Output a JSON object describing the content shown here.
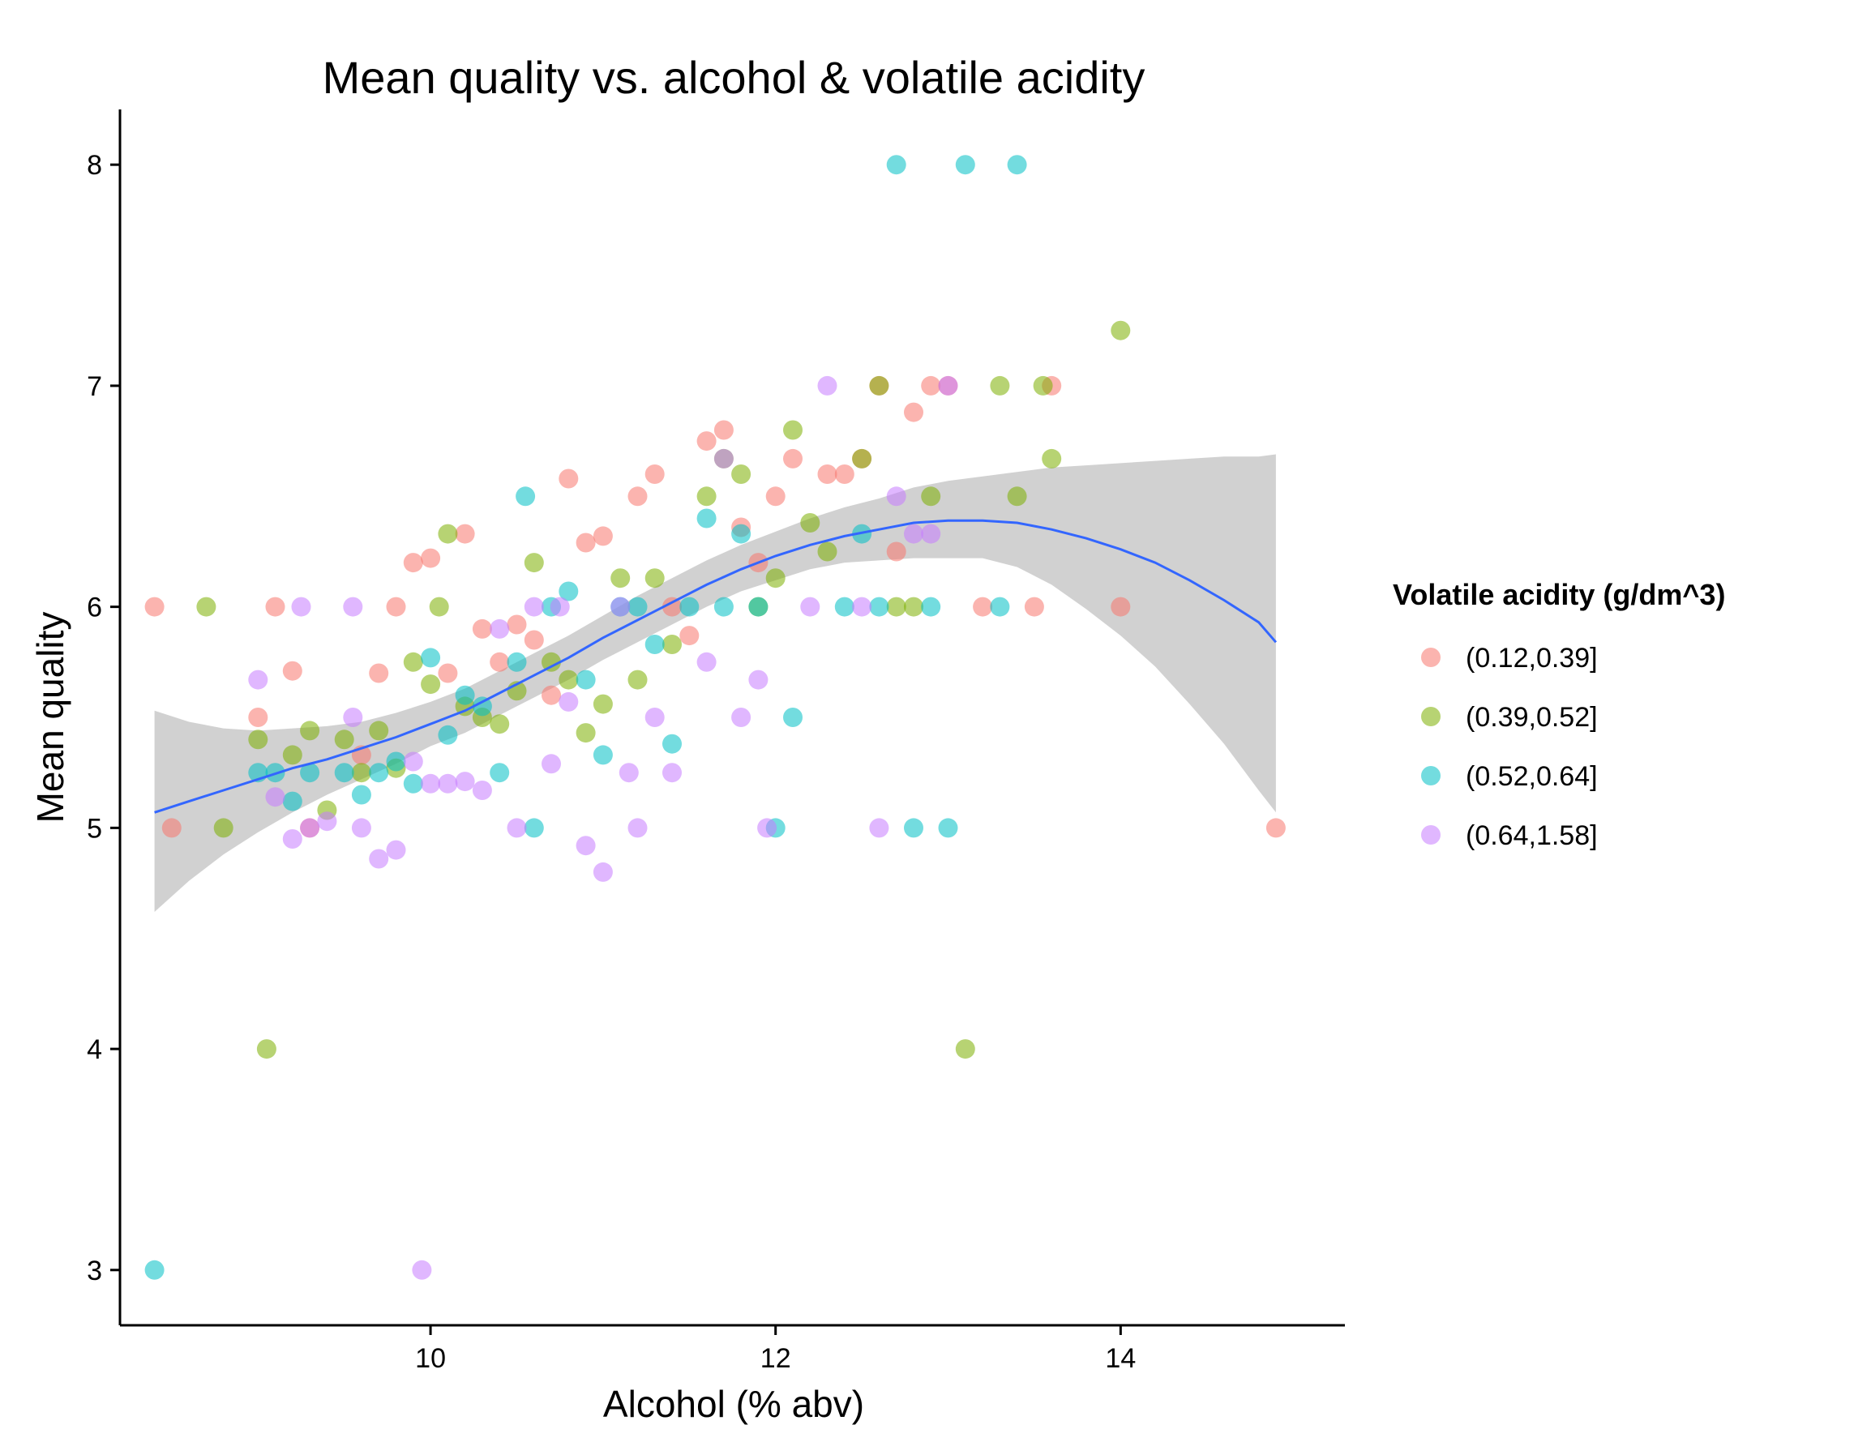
{
  "chart_data": {
    "type": "scatter",
    "title": "Mean quality vs. alcohol & volatile acidity",
    "xlabel": "Alcohol (% abv)",
    "ylabel": "Mean quality",
    "xlim": [
      8.2,
      15.3
    ],
    "ylim": [
      2.75,
      8.25
    ],
    "xticks": [
      10,
      12,
      14
    ],
    "yticks": [
      3,
      4,
      5,
      6,
      7,
      8
    ],
    "grid": false,
    "legend": {
      "title": "Volatile acidity (g/dm^3)",
      "placement": "right"
    },
    "series": [
      {
        "name": "(0.12,0.39]",
        "color": "#F8766D",
        "points": [
          [
            8.4,
            6.0
          ],
          [
            8.5,
            5.0
          ],
          [
            9.0,
            5.5
          ],
          [
            9.1,
            6.0
          ],
          [
            9.2,
            5.71
          ],
          [
            9.3,
            5.0
          ],
          [
            9.6,
            5.33
          ],
          [
            9.7,
            5.7
          ],
          [
            9.8,
            6.0
          ],
          [
            9.9,
            6.2
          ],
          [
            10.0,
            6.22
          ],
          [
            10.1,
            5.7
          ],
          [
            10.2,
            6.33
          ],
          [
            10.3,
            5.9
          ],
          [
            10.4,
            5.75
          ],
          [
            10.5,
            5.92
          ],
          [
            10.6,
            5.85
          ],
          [
            10.7,
            5.6
          ],
          [
            10.8,
            6.58
          ],
          [
            10.9,
            6.29
          ],
          [
            11.0,
            6.32
          ],
          [
            11.2,
            6.5
          ],
          [
            11.3,
            6.6
          ],
          [
            11.4,
            6.0
          ],
          [
            11.5,
            5.87
          ],
          [
            11.6,
            6.75
          ],
          [
            11.7,
            6.8
          ],
          [
            11.8,
            6.36
          ],
          [
            11.9,
            6.2
          ],
          [
            12.0,
            6.5
          ],
          [
            12.1,
            6.67
          ],
          [
            12.3,
            6.6
          ],
          [
            12.4,
            6.6
          ],
          [
            12.5,
            6.67
          ],
          [
            12.6,
            7.0
          ],
          [
            12.7,
            6.25
          ],
          [
            12.8,
            6.88
          ],
          [
            12.9,
            7.0
          ],
          [
            13.0,
            7.0
          ],
          [
            13.2,
            6.0
          ],
          [
            13.5,
            6.0
          ],
          [
            13.6,
            7.0
          ],
          [
            14.0,
            6.0
          ],
          [
            14.9,
            5.0
          ]
        ]
      },
      {
        "name": "(0.39,0.52]",
        "color": "#7CAE00",
        "points": [
          [
            8.7,
            6.0
          ],
          [
            8.8,
            5.0
          ],
          [
            9.0,
            5.4
          ],
          [
            9.05,
            4.0
          ],
          [
            9.2,
            5.33
          ],
          [
            9.3,
            5.44
          ],
          [
            9.4,
            5.08
          ],
          [
            9.5,
            5.4
          ],
          [
            9.6,
            5.25
          ],
          [
            9.7,
            5.44
          ],
          [
            9.8,
            5.27
          ],
          [
            9.9,
            5.75
          ],
          [
            10.0,
            5.65
          ],
          [
            10.05,
            6.0
          ],
          [
            10.1,
            6.33
          ],
          [
            10.2,
            5.55
          ],
          [
            10.3,
            5.5
          ],
          [
            10.4,
            5.47
          ],
          [
            10.5,
            5.62
          ],
          [
            10.6,
            6.2
          ],
          [
            10.7,
            5.75
          ],
          [
            10.8,
            5.67
          ],
          [
            10.9,
            5.43
          ],
          [
            11.0,
            5.56
          ],
          [
            11.1,
            6.13
          ],
          [
            11.2,
            5.67
          ],
          [
            11.3,
            6.13
          ],
          [
            11.4,
            5.83
          ],
          [
            11.6,
            6.5
          ],
          [
            11.7,
            6.67
          ],
          [
            11.8,
            6.6
          ],
          [
            11.9,
            6.0
          ],
          [
            12.0,
            6.13
          ],
          [
            12.1,
            6.8
          ],
          [
            12.2,
            6.38
          ],
          [
            12.3,
            6.25
          ],
          [
            12.5,
            6.67
          ],
          [
            12.6,
            7.0
          ],
          [
            12.7,
            6.0
          ],
          [
            12.8,
            6.0
          ],
          [
            12.9,
            6.5
          ],
          [
            13.1,
            4.0
          ],
          [
            13.3,
            7.0
          ],
          [
            13.4,
            6.5
          ],
          [
            13.55,
            7.0
          ],
          [
            13.6,
            6.67
          ],
          [
            14.0,
            7.25
          ]
        ]
      },
      {
        "name": "(0.52,0.64]",
        "color": "#00BFC4",
        "points": [
          [
            8.4,
            3.0
          ],
          [
            9.0,
            5.25
          ],
          [
            9.1,
            5.25
          ],
          [
            9.2,
            5.12
          ],
          [
            9.3,
            5.25
          ],
          [
            9.5,
            5.25
          ],
          [
            9.6,
            5.15
          ],
          [
            9.7,
            5.25
          ],
          [
            9.8,
            5.3
          ],
          [
            9.9,
            5.2
          ],
          [
            10.0,
            5.77
          ],
          [
            10.1,
            5.42
          ],
          [
            10.2,
            5.6
          ],
          [
            10.3,
            5.55
          ],
          [
            10.4,
            5.25
          ],
          [
            10.5,
            5.75
          ],
          [
            10.55,
            6.5
          ],
          [
            10.6,
            5.0
          ],
          [
            10.7,
            6.0
          ],
          [
            10.8,
            6.07
          ],
          [
            10.9,
            5.67
          ],
          [
            11.0,
            5.33
          ],
          [
            11.1,
            6.0
          ],
          [
            11.2,
            6.0
          ],
          [
            11.3,
            5.83
          ],
          [
            11.4,
            5.38
          ],
          [
            11.5,
            6.0
          ],
          [
            11.6,
            6.4
          ],
          [
            11.7,
            6.0
          ],
          [
            11.8,
            6.33
          ],
          [
            11.9,
            6.0
          ],
          [
            12.0,
            5.0
          ],
          [
            12.1,
            5.5
          ],
          [
            12.4,
            6.0
          ],
          [
            12.5,
            6.33
          ],
          [
            12.6,
            6.0
          ],
          [
            12.7,
            8.0
          ],
          [
            12.8,
            5.0
          ],
          [
            12.9,
            6.0
          ],
          [
            13.0,
            5.0
          ],
          [
            13.1,
            8.0
          ],
          [
            13.3,
            6.0
          ],
          [
            13.4,
            8.0
          ]
        ]
      },
      {
        "name": "(0.64,1.58]",
        "color": "#C77CFF",
        "points": [
          [
            9.0,
            5.67
          ],
          [
            9.1,
            5.14
          ],
          [
            9.2,
            4.95
          ],
          [
            9.25,
            6.0
          ],
          [
            9.3,
            5.0
          ],
          [
            9.4,
            5.03
          ],
          [
            9.55,
            5.5
          ],
          [
            9.55,
            6.0
          ],
          [
            9.6,
            5.0
          ],
          [
            9.7,
            4.86
          ],
          [
            9.8,
            4.9
          ],
          [
            9.9,
            5.3
          ],
          [
            9.95,
            3.0
          ],
          [
            10.0,
            5.2
          ],
          [
            10.1,
            5.2
          ],
          [
            10.2,
            5.21
          ],
          [
            10.3,
            5.17
          ],
          [
            10.4,
            5.9
          ],
          [
            10.5,
            5.0
          ],
          [
            10.6,
            6.0
          ],
          [
            10.7,
            5.29
          ],
          [
            10.75,
            6.0
          ],
          [
            10.8,
            5.57
          ],
          [
            10.9,
            4.92
          ],
          [
            11.0,
            4.8
          ],
          [
            11.1,
            6.0
          ],
          [
            11.15,
            5.25
          ],
          [
            11.2,
            5.0
          ],
          [
            11.3,
            5.5
          ],
          [
            11.4,
            5.25
          ],
          [
            11.6,
            5.75
          ],
          [
            11.7,
            6.67
          ],
          [
            11.8,
            5.5
          ],
          [
            11.9,
            5.67
          ],
          [
            11.95,
            5.0
          ],
          [
            12.2,
            6.0
          ],
          [
            12.3,
            7.0
          ],
          [
            12.5,
            6.0
          ],
          [
            12.6,
            5.0
          ],
          [
            12.7,
            6.5
          ],
          [
            12.8,
            6.33
          ],
          [
            12.9,
            6.33
          ],
          [
            13.0,
            7.0
          ]
        ]
      }
    ],
    "smooth": {
      "color": "#3366FF",
      "band_color": "#999999",
      "points": [
        [
          8.4,
          5.07,
          4.62,
          5.53
        ],
        [
          8.6,
          5.12,
          4.76,
          5.48
        ],
        [
          8.8,
          5.17,
          4.88,
          5.45
        ],
        [
          9.0,
          5.22,
          4.98,
          5.44
        ],
        [
          9.2,
          5.27,
          5.07,
          5.45
        ],
        [
          9.4,
          5.31,
          5.15,
          5.46
        ],
        [
          9.6,
          5.36,
          5.22,
          5.48
        ],
        [
          9.8,
          5.41,
          5.29,
          5.52
        ],
        [
          10.0,
          5.47,
          5.37,
          5.57
        ],
        [
          10.2,
          5.53,
          5.43,
          5.63
        ],
        [
          10.4,
          5.61,
          5.51,
          5.71
        ],
        [
          10.6,
          5.69,
          5.59,
          5.79
        ],
        [
          10.8,
          5.77,
          5.67,
          5.87
        ],
        [
          11.0,
          5.86,
          5.76,
          5.96
        ],
        [
          11.2,
          5.94,
          5.84,
          6.05
        ],
        [
          11.4,
          6.02,
          5.92,
          6.13
        ],
        [
          11.6,
          6.1,
          6.0,
          6.21
        ],
        [
          11.8,
          6.17,
          6.07,
          6.28
        ],
        [
          12.0,
          6.23,
          6.12,
          6.34
        ],
        [
          12.2,
          6.28,
          6.17,
          6.4
        ],
        [
          12.4,
          6.32,
          6.2,
          6.45
        ],
        [
          12.6,
          6.35,
          6.21,
          6.49
        ],
        [
          12.8,
          6.38,
          6.22,
          6.54
        ],
        [
          13.0,
          6.39,
          6.22,
          6.57
        ],
        [
          13.2,
          6.39,
          6.22,
          6.59
        ],
        [
          13.4,
          6.38,
          6.18,
          6.61
        ],
        [
          13.6,
          6.35,
          6.1,
          6.63
        ],
        [
          13.8,
          6.31,
          5.99,
          6.64
        ],
        [
          14.0,
          6.26,
          5.87,
          6.65
        ],
        [
          14.2,
          6.2,
          5.73,
          6.66
        ],
        [
          14.4,
          6.12,
          5.56,
          6.67
        ],
        [
          14.6,
          6.03,
          5.38,
          6.68
        ],
        [
          14.8,
          5.93,
          5.17,
          6.68
        ],
        [
          14.9,
          5.84,
          5.07,
          6.69
        ]
      ]
    }
  }
}
